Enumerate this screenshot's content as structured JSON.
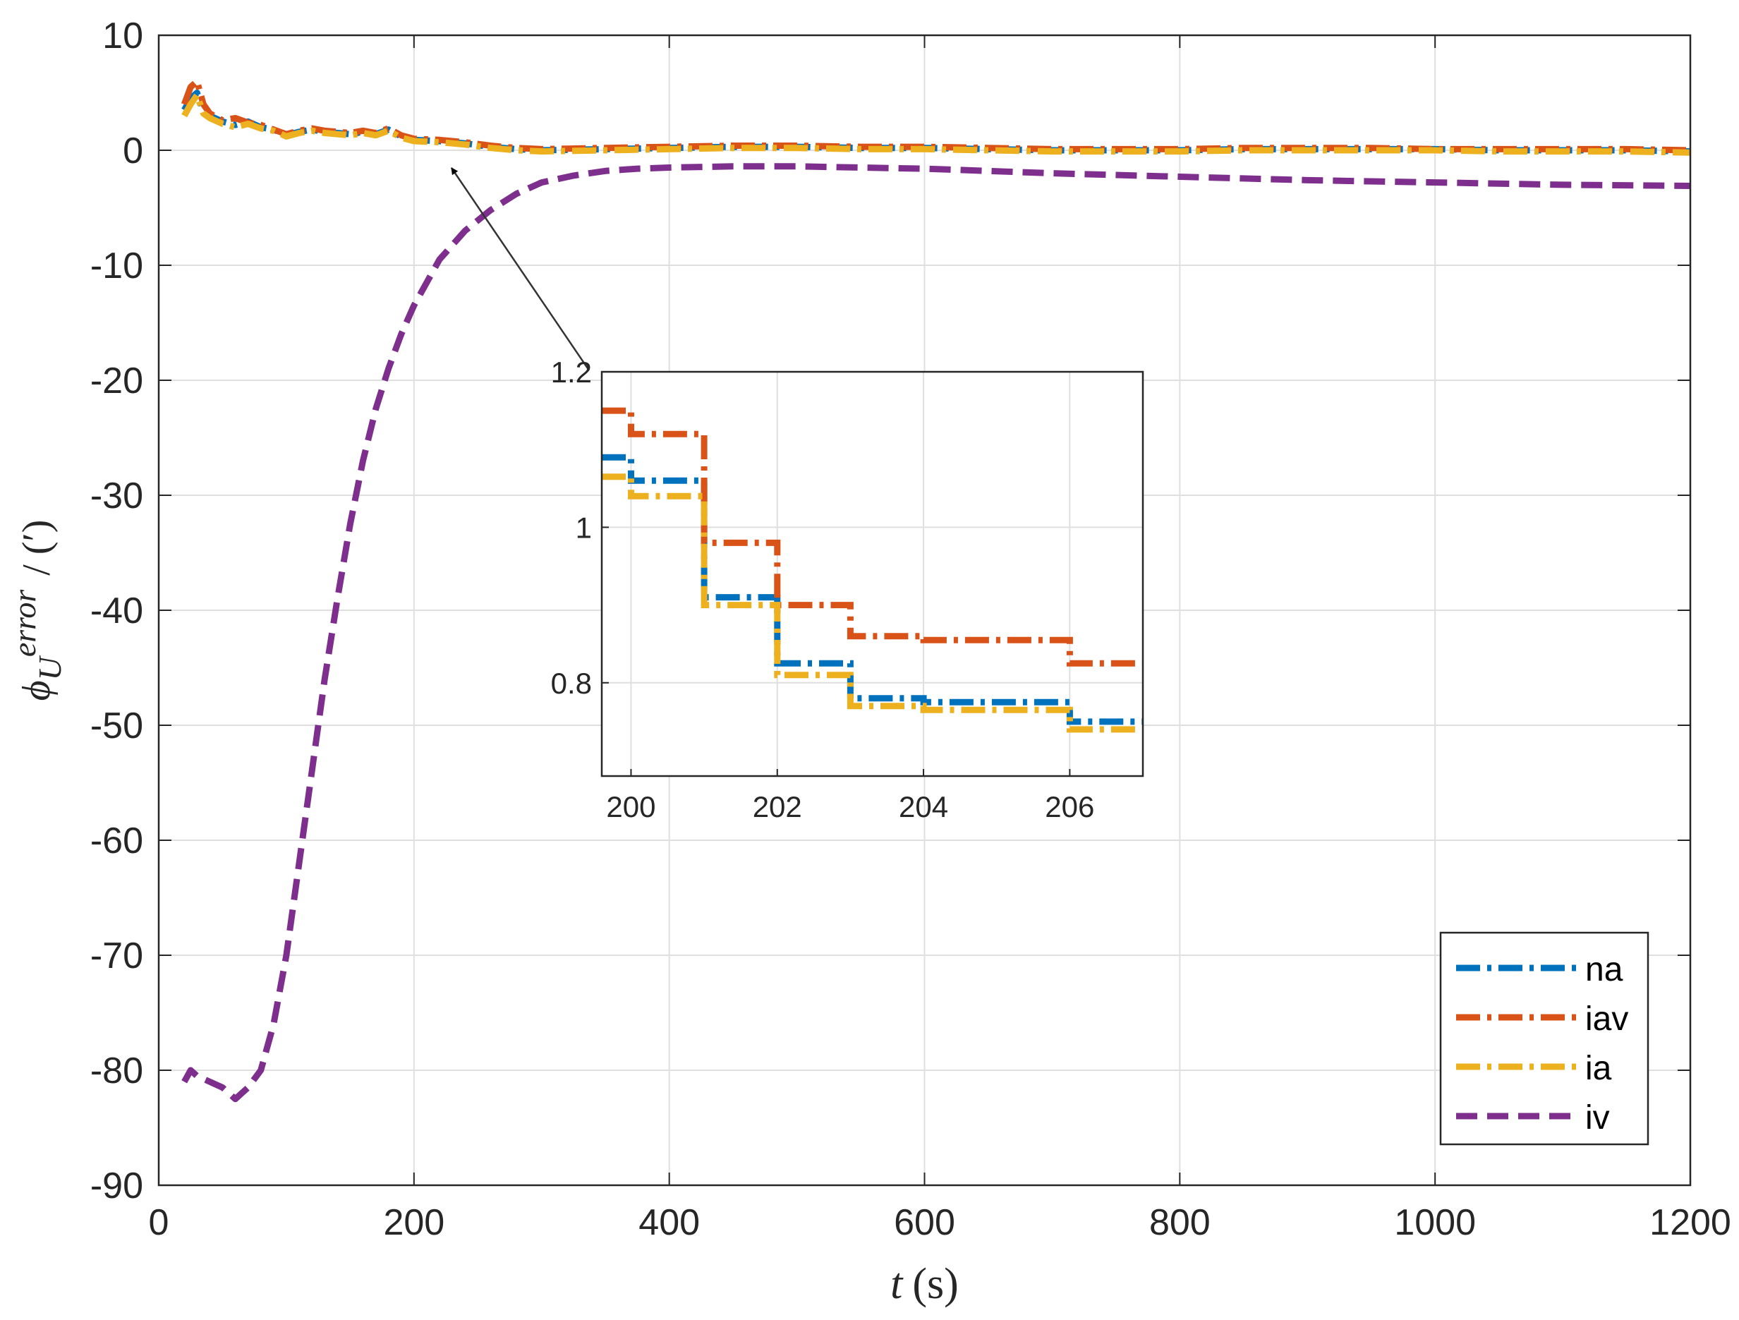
{
  "chart_data": [
    {
      "type": "line",
      "xlabel_var": "t",
      "xlabel_unit": "(s)",
      "ylabel_symbol": "ϕ",
      "ylabel_sub": "U",
      "ylabel_sup": "error",
      "ylabel_unit": "/ (′)",
      "xlim": [
        0,
        1200
      ],
      "ylim": [
        -90,
        10
      ],
      "xticks": [
        "0",
        "200",
        "400",
        "600",
        "800",
        "1000",
        "1200"
      ],
      "yticks": [
        "10",
        "0",
        "-10",
        "-20",
        "-30",
        "-40",
        "-50",
        "-60",
        "-70",
        "-80",
        "-90"
      ],
      "grid": true,
      "legend_position": "bottom-right",
      "series": [
        {
          "name": "na",
          "color": "#0072BD",
          "dash": "dashdot",
          "x": [
            20,
            25,
            30,
            35,
            40,
            50,
            60,
            70,
            80,
            90,
            100,
            110,
            120,
            130,
            140,
            150,
            160,
            170,
            180,
            190,
            200,
            220,
            240,
            260,
            280,
            300,
            350,
            400,
            450,
            500,
            550,
            600,
            650,
            700,
            750,
            800,
            850,
            900,
            950,
            1000,
            1050,
            1100,
            1150,
            1200
          ],
          "y": [
            3.5,
            4.5,
            5.0,
            3.5,
            3.0,
            2.5,
            2.2,
            2.5,
            2.0,
            1.8,
            1.3,
            1.6,
            1.8,
            1.6,
            1.5,
            1.4,
            1.6,
            1.4,
            1.8,
            1.2,
            0.9,
            0.8,
            0.6,
            0.3,
            0.1,
            0.0,
            0.1,
            0.2,
            0.3,
            0.3,
            0.2,
            0.2,
            0.1,
            0.0,
            0.0,
            0.0,
            0.1,
            0.1,
            0.1,
            0.1,
            0.0,
            0.0,
            0.0,
            -0.1
          ]
        },
        {
          "name": "iav",
          "color": "#D95319",
          "dash": "dashdot",
          "x": [
            20,
            25,
            30,
            35,
            40,
            50,
            60,
            70,
            80,
            90,
            100,
            110,
            120,
            130,
            140,
            150,
            160,
            170,
            180,
            190,
            200,
            220,
            240,
            260,
            280,
            300,
            350,
            400,
            450,
            500,
            550,
            600,
            650,
            700,
            750,
            800,
            850,
            900,
            950,
            1000,
            1050,
            1100,
            1150,
            1200
          ],
          "y": [
            4.0,
            5.5,
            6.0,
            4.0,
            3.2,
            2.6,
            2.8,
            2.4,
            2.2,
            1.8,
            1.4,
            1.7,
            1.9,
            1.7,
            1.6,
            1.5,
            1.7,
            1.5,
            1.9,
            1.3,
            1.0,
            0.9,
            0.7,
            0.4,
            0.2,
            0.1,
            0.2,
            0.3,
            0.4,
            0.4,
            0.3,
            0.3,
            0.2,
            0.1,
            0.1,
            0.1,
            0.2,
            0.2,
            0.2,
            0.1,
            0.1,
            0.1,
            0.1,
            0.0
          ]
        },
        {
          "name": "ia",
          "color": "#EDB120",
          "dash": "dashdot",
          "x": [
            20,
            25,
            30,
            35,
            40,
            50,
            60,
            70,
            80,
            90,
            100,
            110,
            120,
            130,
            140,
            150,
            160,
            170,
            180,
            190,
            200,
            220,
            240,
            260,
            280,
            300,
            350,
            400,
            450,
            500,
            550,
            600,
            650,
            700,
            750,
            800,
            850,
            900,
            950,
            1000,
            1050,
            1100,
            1150,
            1200
          ],
          "y": [
            3.0,
            4.0,
            4.8,
            3.2,
            2.8,
            2.3,
            2.0,
            2.3,
            1.9,
            1.7,
            1.2,
            1.5,
            1.7,
            1.5,
            1.4,
            1.3,
            1.5,
            1.3,
            1.7,
            1.1,
            0.8,
            0.7,
            0.5,
            0.2,
            0.0,
            -0.1,
            0.0,
            0.1,
            0.2,
            0.2,
            0.1,
            0.1,
            0.0,
            -0.1,
            -0.1,
            -0.1,
            0.0,
            0.0,
            0.0,
            0.0,
            -0.1,
            -0.1,
            -0.1,
            -0.2
          ]
        },
        {
          "name": "iv",
          "color": "#7E2F8E",
          "dash": "dashed",
          "x": [
            20,
            25,
            30,
            40,
            50,
            60,
            65,
            70,
            80,
            90,
            100,
            110,
            120,
            130,
            140,
            150,
            160,
            170,
            180,
            190,
            200,
            220,
            240,
            260,
            280,
            300,
            325,
            350,
            375,
            400,
            450,
            500,
            550,
            600,
            650,
            700,
            800,
            900,
            1000,
            1100,
            1200
          ],
          "y": [
            -81,
            -80,
            -80.5,
            -81,
            -81.5,
            -82.5,
            -82,
            -81.5,
            -80,
            -76,
            -70,
            -62,
            -54,
            -46,
            -39,
            -32.5,
            -27,
            -22.5,
            -19,
            -16,
            -13.5,
            -9.5,
            -7,
            -5.2,
            -3.8,
            -2.8,
            -2.2,
            -1.8,
            -1.6,
            -1.5,
            -1.4,
            -1.4,
            -1.5,
            -1.6,
            -1.8,
            -2.0,
            -2.3,
            -2.6,
            -2.8,
            -3.0,
            -3.1
          ]
        }
      ]
    },
    {
      "type": "line",
      "inset": true,
      "xlim": [
        199.6,
        207
      ],
      "ylim": [
        0.68,
        1.2
      ],
      "xticks": [
        "200",
        "202",
        "204",
        "206"
      ],
      "yticks": [
        "1.2",
        "1",
        "0.8"
      ],
      "grid": true,
      "series": [
        {
          "name": "na",
          "color": "#0072BD",
          "x": [
            199.6,
            200.0,
            201.0,
            202.0,
            203.0,
            204.0,
            206.0,
            207.0
          ],
          "y": [
            1.09,
            1.06,
            0.91,
            0.825,
            0.78,
            0.775,
            0.75,
            0.75
          ]
        },
        {
          "name": "iav",
          "color": "#D95319",
          "x": [
            199.6,
            200.0,
            201.0,
            202.0,
            203.0,
            204.0,
            206.0,
            207.0
          ],
          "y": [
            1.15,
            1.12,
            0.98,
            0.9,
            0.86,
            0.855,
            0.825,
            0.825
          ]
        },
        {
          "name": "ia",
          "color": "#EDB120",
          "x": [
            199.6,
            200.0,
            201.0,
            202.0,
            203.0,
            204.0,
            206.0,
            207.0
          ],
          "y": [
            1.065,
            1.04,
            0.9,
            0.81,
            0.77,
            0.765,
            0.74,
            0.74
          ]
        }
      ]
    }
  ]
}
